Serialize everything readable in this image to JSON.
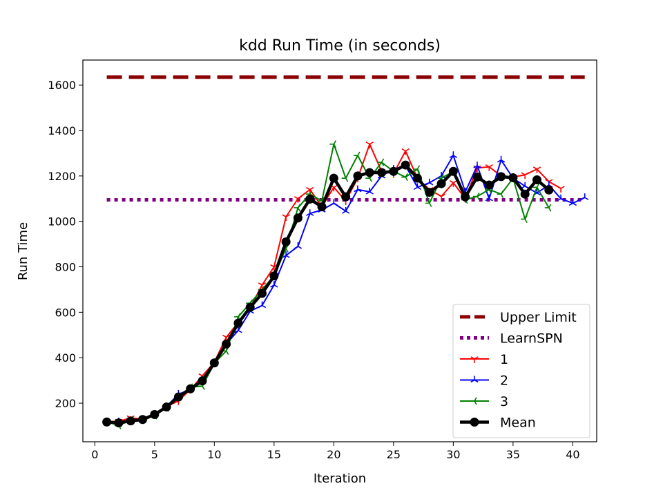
{
  "chart_data": {
    "type": "line",
    "title": "kdd Run Time (in seconds)",
    "xlabel": "Iteration",
    "ylabel": "Run Time",
    "xlim": [
      -1,
      42
    ],
    "ylim": [
      30,
      1710
    ],
    "xticks": [
      0,
      5,
      10,
      15,
      20,
      25,
      30,
      35,
      40
    ],
    "yticks": [
      200,
      400,
      600,
      800,
      1000,
      1200,
      1400,
      1600
    ],
    "grid": false,
    "legend_position": "lower-right",
    "reference_lines": [
      {
        "name": "Upper Limit",
        "y": 1635,
        "x_range": [
          1,
          41
        ],
        "color": "#8b0000",
        "style": "dashed"
      },
      {
        "name": "LearnSPN",
        "y": 1095,
        "x_range": [
          1,
          41
        ],
        "color": "#800080",
        "style": "dotted"
      }
    ],
    "series": [
      {
        "name": "1",
        "color": "#ff0000",
        "marker": "tri_down",
        "x": [
          1,
          2,
          3,
          4,
          5,
          6,
          7,
          8,
          9,
          10,
          11,
          12,
          13,
          14,
          15,
          16,
          17,
          18,
          19,
          20,
          21,
          22,
          23,
          24,
          25,
          26,
          27,
          28,
          29,
          30,
          31,
          32,
          33,
          34,
          35,
          36,
          37,
          38,
          39
        ],
        "values": [
          118,
          120,
          135,
          130,
          155,
          185,
          210,
          260,
          320,
          380,
          490,
          555,
          620,
          720,
          800,
          1020,
          1100,
          1140,
          1065,
          1150,
          1090,
          1190,
          1340,
          1220,
          1210,
          1310,
          1190,
          1140,
          1110,
          1170,
          1100,
          1235,
          1240,
          1200,
          1195,
          1205,
          1230,
          1175,
          1145
        ]
      },
      {
        "name": "2",
        "color": "#0000ff",
        "marker": "tri_up",
        "x": [
          1,
          2,
          3,
          4,
          5,
          6,
          7,
          8,
          9,
          10,
          11,
          12,
          13,
          14,
          15,
          16,
          17,
          18,
          19,
          20,
          21,
          22,
          23,
          24,
          25,
          26,
          27,
          28,
          29,
          30,
          31,
          32,
          33,
          34,
          35,
          36,
          37,
          38,
          39,
          40,
          41
        ],
        "values": [
          115,
          118,
          120,
          125,
          150,
          185,
          240,
          260,
          300,
          375,
          460,
          520,
          605,
          630,
          720,
          850,
          890,
          1035,
          1050,
          1080,
          1045,
          1140,
          1130,
          1200,
          1230,
          1245,
          1150,
          1170,
          1200,
          1290,
          1130,
          1245,
          1100,
          1270,
          1190,
          1155,
          1125,
          1160,
          1100,
          1080,
          1105
        ]
      },
      {
        "name": "3",
        "color": "#008000",
        "marker": "tri_left",
        "x": [
          1,
          2,
          3,
          4,
          5,
          6,
          7,
          8,
          9,
          10,
          11,
          12,
          13,
          14,
          15,
          16,
          17,
          18,
          19,
          20,
          21,
          22,
          23,
          24,
          25,
          26,
          27,
          28,
          29,
          30,
          31,
          32,
          33,
          34,
          35,
          36,
          37,
          38
        ],
        "values": [
          118,
          102,
          125,
          128,
          145,
          180,
          230,
          270,
          275,
          375,
          430,
          580,
          640,
          700,
          760,
          880,
          1060,
          1120,
          1090,
          1340,
          1190,
          1290,
          1190,
          1260,
          1220,
          1195,
          1230,
          1080,
          1190,
          1220,
          1095,
          1110,
          1140,
          1120,
          1190,
          1010,
          1150,
          1060
        ]
      },
      {
        "name": "Mean",
        "color": "#000000",
        "marker": "circle",
        "x": [
          1,
          2,
          3,
          4,
          5,
          6,
          7,
          8,
          9,
          10,
          11,
          12,
          13,
          14,
          15,
          16,
          17,
          18,
          19,
          20,
          21,
          22,
          23,
          24,
          25,
          26,
          27,
          28,
          29,
          30,
          31,
          32,
          33,
          34,
          35,
          36,
          37,
          38
        ],
        "values": [
          117,
          113,
          122,
          128,
          150,
          183,
          227,
          263,
          298,
          377,
          460,
          552,
          622,
          683,
          760,
          910,
          1015,
          1098,
          1064,
          1190,
          1108,
          1200,
          1215,
          1215,
          1220,
          1248,
          1190,
          1128,
          1166,
          1220,
          1108,
          1195,
          1160,
          1197,
          1192,
          1120,
          1183,
          1138
        ]
      }
    ]
  }
}
